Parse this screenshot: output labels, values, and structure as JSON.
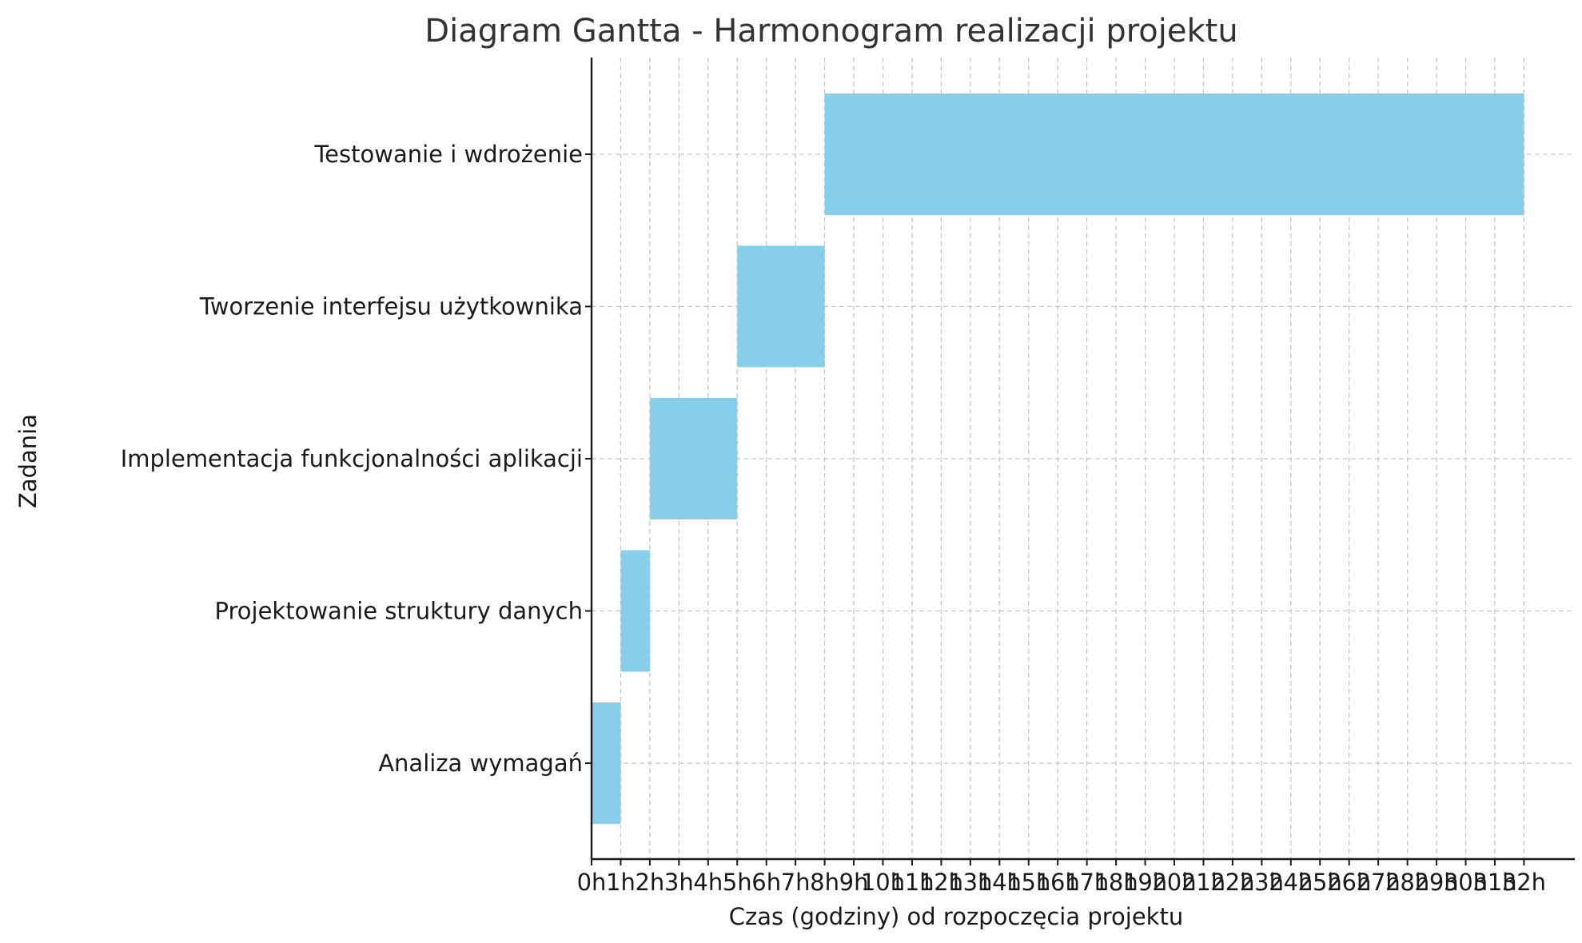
{
  "chart_data": {
    "type": "bar",
    "orientation": "horizontal",
    "title": "Diagram Gantta - Harmonogram realizacji projektu",
    "xlabel": "Czas (godziny) od rozpoczęcia projektu",
    "ylabel": "Zadania",
    "xlim": [
      0,
      33.5
    ],
    "x_ticks": [
      "0h",
      "1h",
      "2h",
      "3h",
      "4h",
      "5h",
      "6h",
      "7h",
      "8h",
      "9h",
      "10h",
      "11h",
      "12h",
      "13h",
      "14h",
      "15h",
      "16h",
      "17h",
      "18h",
      "19h",
      "20h",
      "21h",
      "22h",
      "23h",
      "24h",
      "25h",
      "26h",
      "27h",
      "28h",
      "29h",
      "30h",
      "31h",
      "32h"
    ],
    "x_tick_values": [
      0,
      1,
      2,
      3,
      4,
      5,
      6,
      7,
      8,
      9,
      10,
      11,
      12,
      13,
      14,
      15,
      16,
      17,
      18,
      19,
      20,
      21,
      22,
      23,
      24,
      25,
      26,
      27,
      28,
      29,
      30,
      31,
      32
    ],
    "grid": true,
    "bar_color": "#87CEEB",
    "tasks": [
      {
        "name": "Analiza wymagań",
        "start": 0,
        "end": 1
      },
      {
        "name": "Projektowanie struktury danych",
        "start": 1,
        "end": 2
      },
      {
        "name": "Implementacja funkcjonalności aplikacji",
        "start": 2,
        "end": 5
      },
      {
        "name": "Tworzenie interfejsu użytkownika",
        "start": 5,
        "end": 8
      },
      {
        "name": "Testowanie i wdrożenie",
        "start": 8,
        "end": 32
      }
    ]
  }
}
